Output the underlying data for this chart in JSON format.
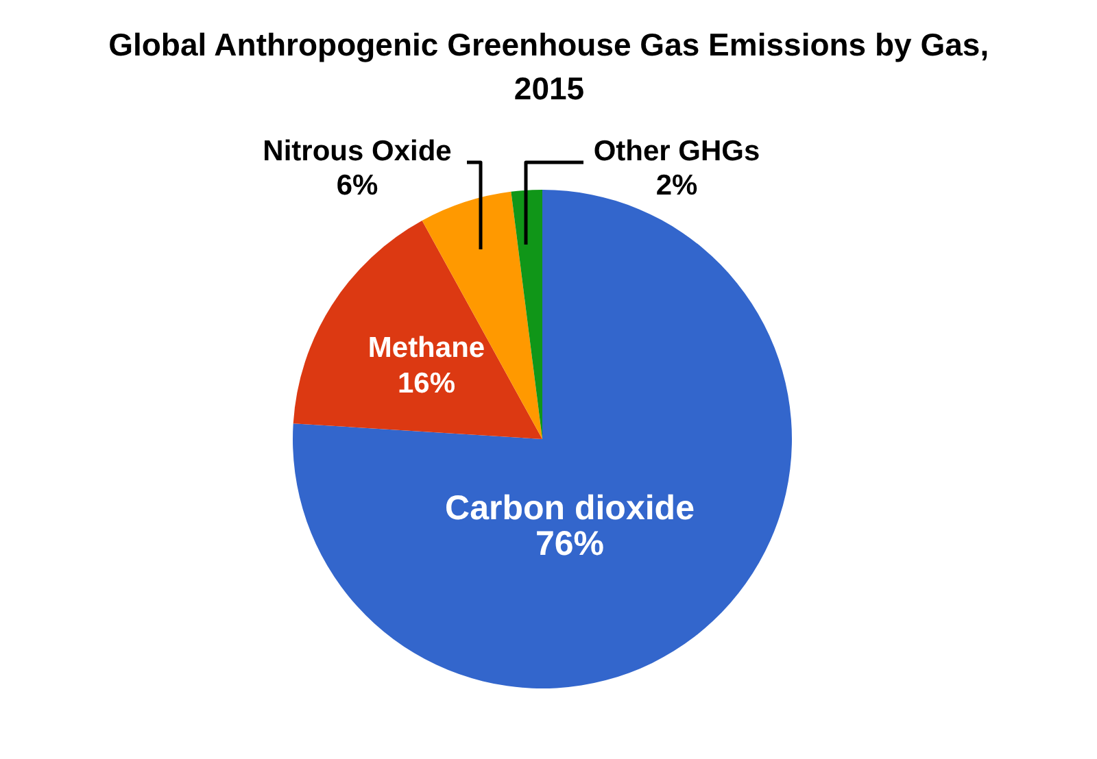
{
  "chart_data": {
    "type": "pie",
    "title": "Global Anthropogenic Greenhouse Gas Emissions by Gas, 2015",
    "categories": [
      "Carbon dioxide",
      "Methane",
      "Nitrous Oxide",
      "Other GHGs"
    ],
    "values": [
      76,
      16,
      6,
      2
    ],
    "colors": [
      "#3366cc",
      "#dc3912",
      "#ff9900",
      "#109618"
    ],
    "value_labels": [
      "76%",
      "16%",
      "6%",
      "2%"
    ]
  }
}
